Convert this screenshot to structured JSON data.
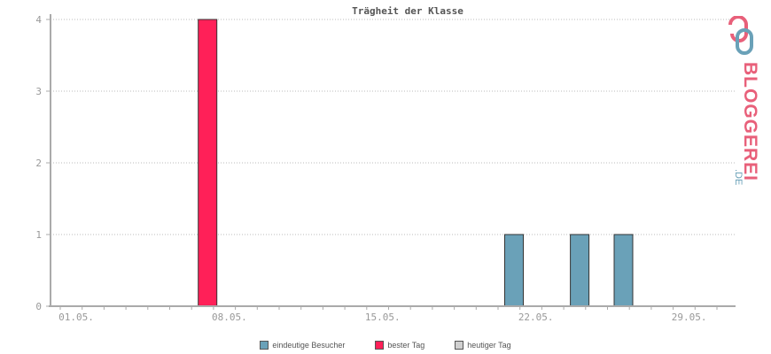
{
  "chart_data": {
    "type": "bar",
    "title": "Trägheit der Klasse",
    "xlabel": "",
    "ylabel": "",
    "x_ticks": [
      "01.05.",
      "08.05.",
      "15.05.",
      "22.05.",
      "29.05."
    ],
    "y_ticks": [
      "0",
      "1",
      "2",
      "3",
      "4"
    ],
    "ylim": [
      0,
      4
    ],
    "grid": true,
    "series": [
      {
        "name": "eindeutige Besucher",
        "color": "#6aa1b8",
        "points": [
          {
            "date": "21.05.",
            "value": 1
          },
          {
            "date": "24.05.",
            "value": 1
          },
          {
            "date": "26.05.",
            "value": 1
          }
        ]
      },
      {
        "name": "bester Tag",
        "color": "#ff2058",
        "points": [
          {
            "date": "07.05.",
            "value": 4
          }
        ]
      },
      {
        "name": "heutiger Tag",
        "color": "#d0d0d0",
        "points": []
      }
    ]
  },
  "logo": {
    "text": "BLOGGEREI",
    "suffix": ".DE"
  }
}
